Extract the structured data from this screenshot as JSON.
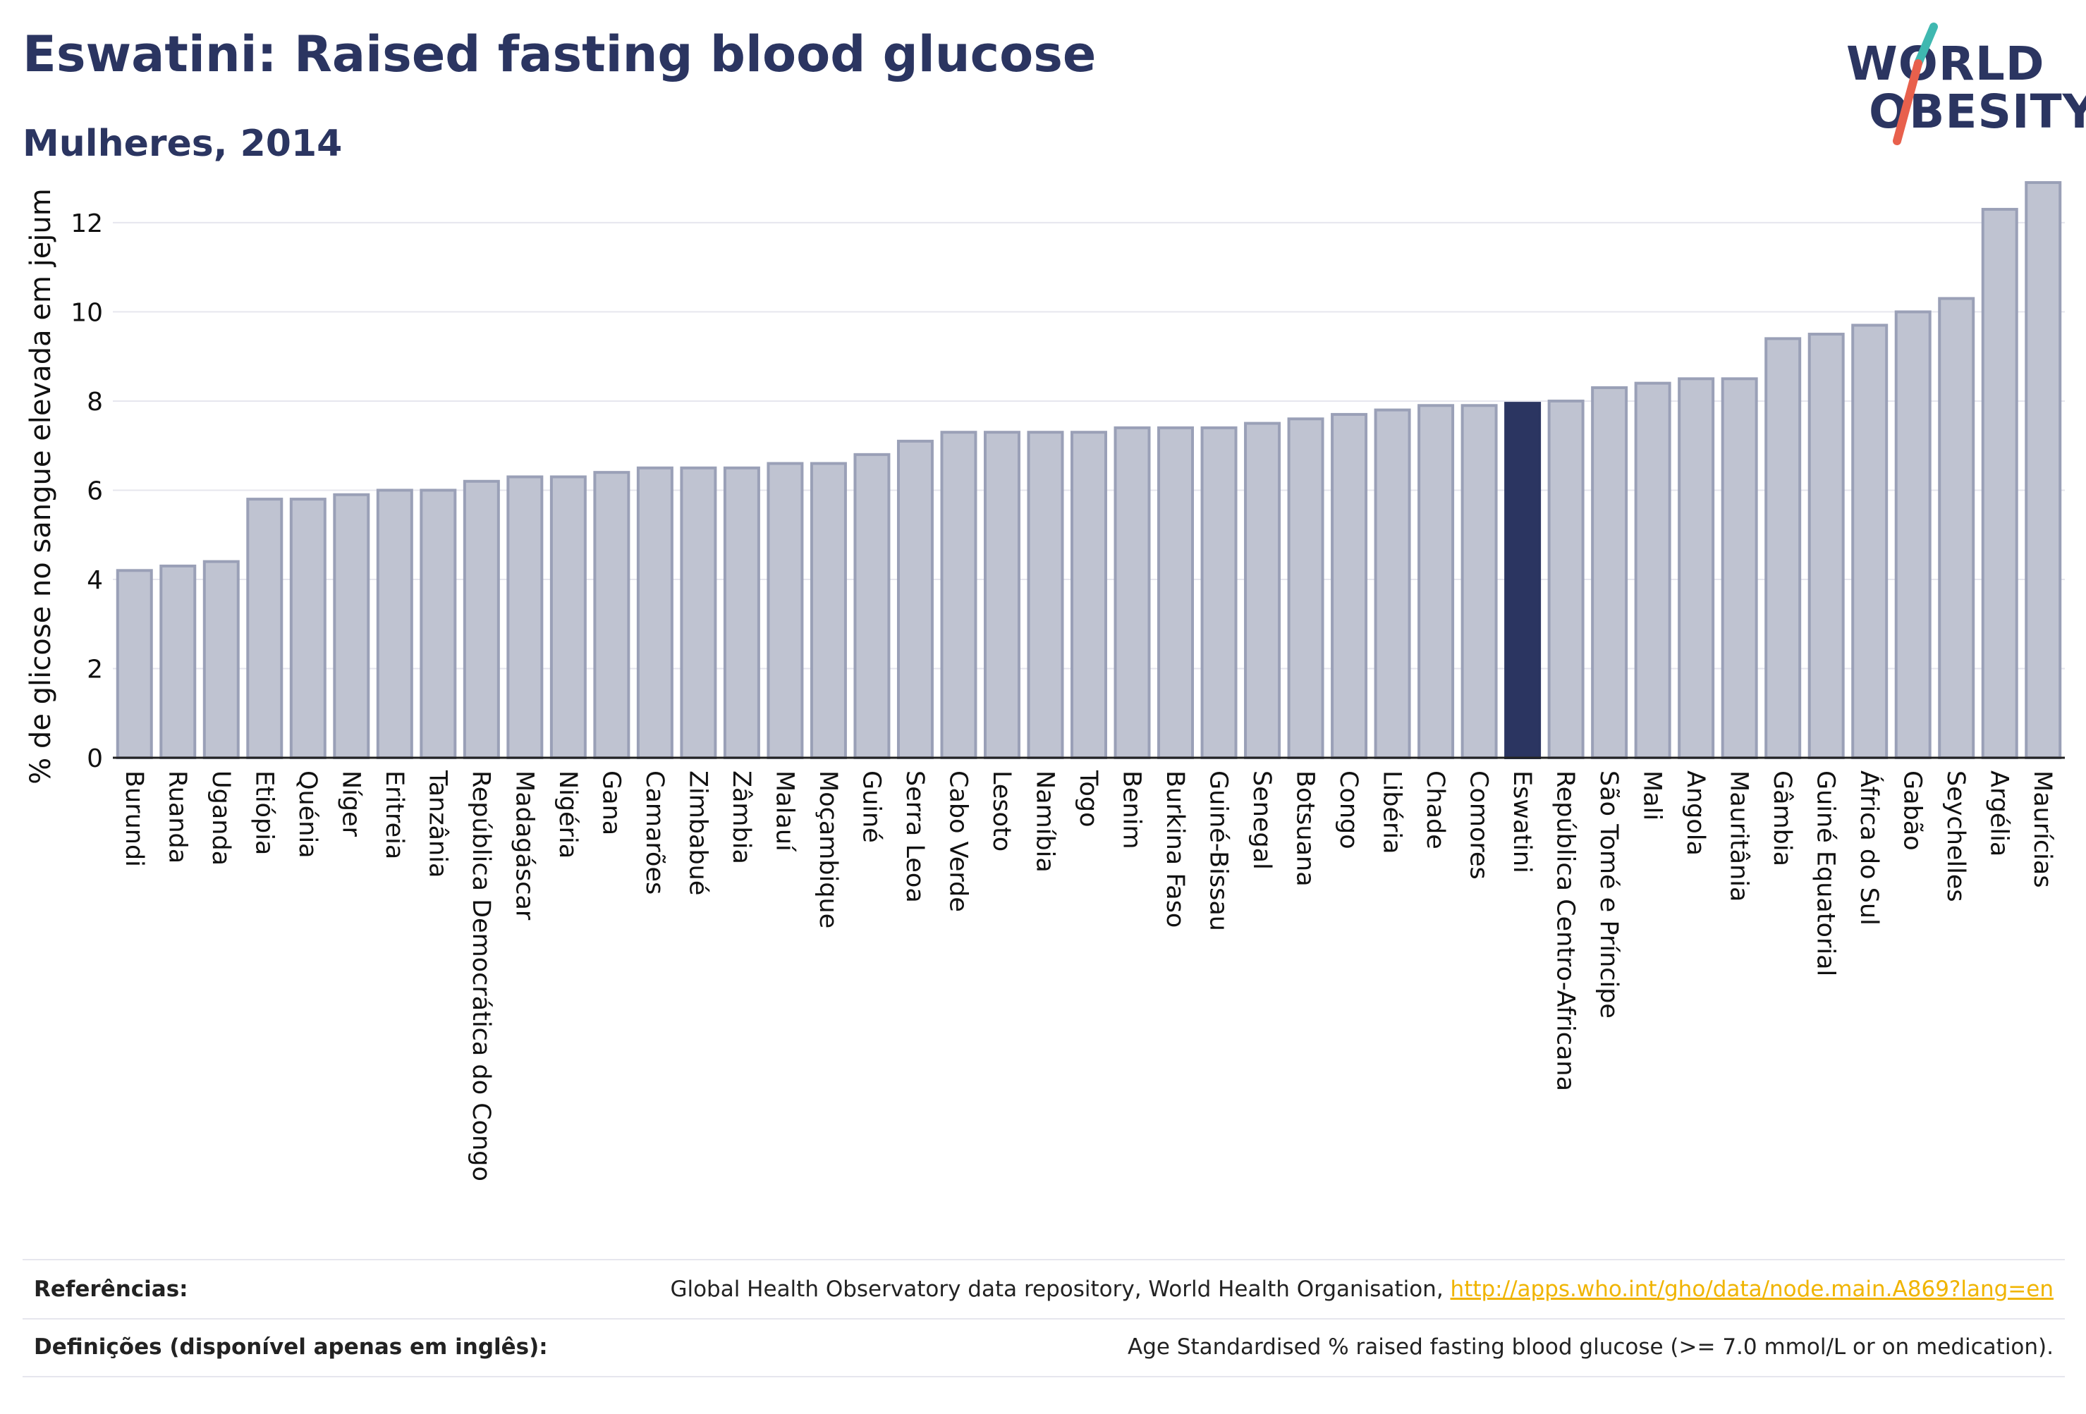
{
  "header": {
    "title": "Eswatini: Raised fasting blood glucose",
    "subtitle": "Mulheres, 2014"
  },
  "logo": {
    "line1": "WORLD",
    "line2": "OBESITY",
    "color_accent_teal": "#3fb8b0",
    "color_accent_red": "#e8604c"
  },
  "colors": {
    "bar": "#bfc3d1",
    "bar_border": "#9aa0b7",
    "highlight": "#2b3561",
    "grid": "#e6e6ee"
  },
  "chart_data": {
    "type": "bar",
    "ylabel": "% de glicose no sangue elevada em jejum",
    "ylim": [
      0,
      13.2
    ],
    "yticks": [
      0,
      2,
      4,
      6,
      8,
      10,
      12
    ],
    "highlight": "Eswatini",
    "categories": [
      "Burundi",
      "Ruanda",
      "Uganda",
      "Etiópia",
      "Quénia",
      "Níger",
      "Eritreia",
      "Tanzânia",
      "República Democrática do Congo",
      "Madagáscar",
      "Nigéria",
      "Gana",
      "Camarões",
      "Zimbabué",
      "Zâmbia",
      "Malauí",
      "Moçambique",
      "Guiné",
      "Serra Leoa",
      "Cabo Verde",
      "Lesoto",
      "Namíbia",
      "Togo",
      "Benim",
      "Burkina Faso",
      "Guiné-Bissau",
      "Senegal",
      "Botsuana",
      "Congo",
      "Libéria",
      "Chade",
      "Comores",
      "Eswatini",
      "República Centro-Africana",
      "São Tomé e Príncipe",
      "Mali",
      "Angola",
      "Mauritânia",
      "Gâmbia",
      "Guiné Equatorial",
      "África do Sul",
      "Gabão",
      "Seychelles",
      "Argélia",
      "Maurícias"
    ],
    "values": [
      4.2,
      4.3,
      4.4,
      5.8,
      5.8,
      5.9,
      6.0,
      6.0,
      6.2,
      6.3,
      6.3,
      6.4,
      6.5,
      6.5,
      6.5,
      6.6,
      6.6,
      6.8,
      7.1,
      7.3,
      7.3,
      7.3,
      7.3,
      7.4,
      7.4,
      7.4,
      7.5,
      7.6,
      7.7,
      7.8,
      7.9,
      7.9,
      7.95,
      8.0,
      8.3,
      8.4,
      8.5,
      8.5,
      9.4,
      9.5,
      9.7,
      10.0,
      10.3,
      12.3,
      12.9
    ]
  },
  "footer": {
    "references_label": "Referências:",
    "references_text": "Global Health Observatory data repository, World Health Organisation, ",
    "references_link": "http://apps.who.int/gho/data/node.main.A869?lang=en",
    "definitions_label": "Definições (disponível apenas em inglês):",
    "definitions_text": "Age Standardised % raised fasting blood glucose (>= 7.0 mmol/L or on medication)."
  }
}
